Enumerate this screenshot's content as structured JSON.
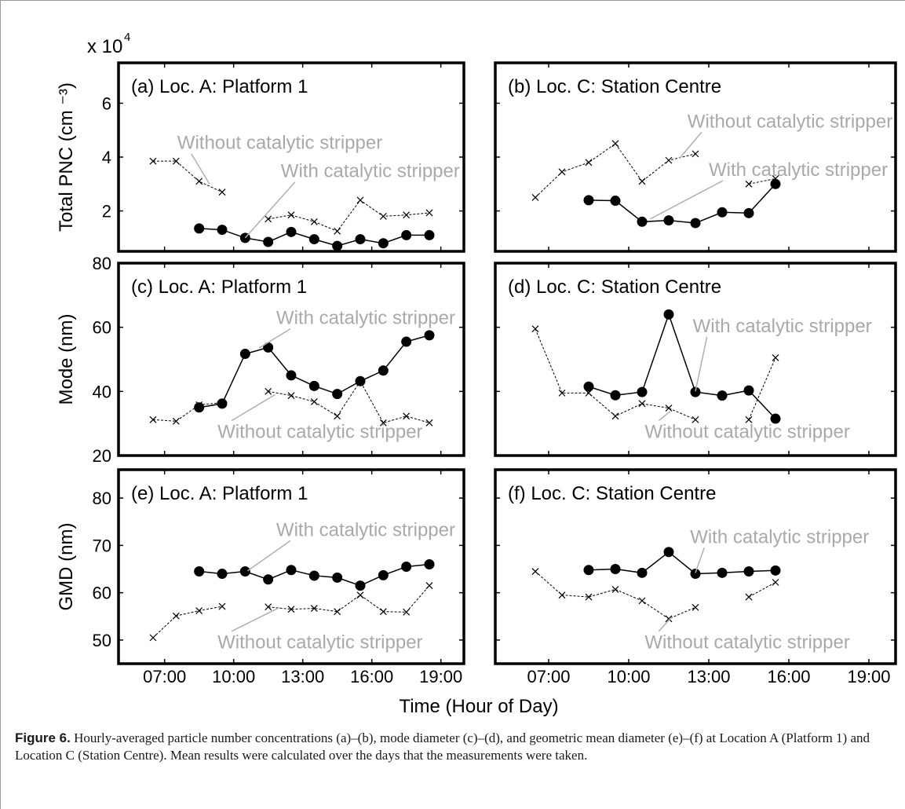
{
  "figure": {
    "exponent_base": "x 10",
    "exponent_power": "4",
    "xlabel": "Time (Hour of Day)",
    "caption_label": "Figure 6.",
    "caption_text": " Hourly-averaged particle number concentrations (a)–(b), mode diameter (c)–(d), and geometric mean diameter (e)–(f) at Location A (Platform 1) and Location C (Station Centre). Mean results were calculated over the days that the measurements were taken."
  },
  "chart_data": [
    {
      "id": "a",
      "type": "line",
      "row": 0,
      "col": 0,
      "title": "(a) Loc. A: Platform 1",
      "ylabel": "Total PNC (cm ⁻³)",
      "xlim": [
        5,
        20
      ],
      "ylim": [
        0.5,
        7.5
      ],
      "xticks": [
        "07:00",
        "10:00",
        "13:00",
        "16:00",
        "19:00"
      ],
      "yticks": [
        2,
        4,
        6
      ],
      "series": [
        {
          "name": "With catalytic stripper",
          "style": "solid-dot",
          "segments": [
            [
              [
                8.5,
                1.35
              ],
              [
                9.5,
                1.3
              ],
              [
                10.5,
                1.0
              ],
              [
                11.5,
                0.85
              ],
              [
                12.5,
                1.22
              ],
              [
                13.5,
                0.95
              ],
              [
                14.5,
                0.7
              ],
              [
                15.5,
                0.95
              ],
              [
                16.5,
                0.8
              ],
              [
                17.5,
                1.1
              ],
              [
                18.5,
                1.1
              ]
            ]
          ]
        },
        {
          "name": "Without catalytic stripper",
          "style": "dashed-x",
          "segments": [
            [
              [
                6.5,
                3.85
              ],
              [
                7.5,
                3.85
              ],
              [
                8.5,
                3.1
              ],
              [
                9.5,
                2.7
              ]
            ],
            [
              [
                11.5,
                1.7
              ],
              [
                12.5,
                1.85
              ],
              [
                13.5,
                1.6
              ],
              [
                14.5,
                1.25
              ],
              [
                15.5,
                2.4
              ],
              [
                16.5,
                1.8
              ],
              [
                17.5,
                1.85
              ],
              [
                18.5,
                1.93
              ]
            ]
          ]
        }
      ],
      "annotations": [
        {
          "text": "Without catalytic stripper",
          "label_at": [
            7.55,
            4.3
          ],
          "point": [
            8.95,
            3.0
          ]
        },
        {
          "text": "With catalytic stripper",
          "label_at": [
            12.05,
            3.25
          ],
          "point": [
            10.5,
            1.0
          ]
        }
      ]
    },
    {
      "id": "b",
      "type": "line",
      "row": 0,
      "col": 1,
      "title": "(b) Loc. C: Station Centre",
      "ylabel": "",
      "xlim": [
        5,
        20
      ],
      "ylim": [
        0.5,
        7.5
      ],
      "xticks": [
        "07:00",
        "10:00",
        "13:00",
        "16:00",
        "19:00"
      ],
      "yticks": [
        2,
        4,
        6
      ],
      "series": [
        {
          "name": "With catalytic stripper",
          "style": "solid-dot",
          "segments": [
            [
              [
                8.5,
                2.4
              ],
              [
                9.5,
                2.38
              ],
              [
                10.5,
                1.6
              ],
              [
                11.5,
                1.65
              ],
              [
                12.5,
                1.55
              ],
              [
                13.5,
                1.95
              ],
              [
                14.5,
                1.92
              ],
              [
                15.5,
                3.0
              ]
            ]
          ]
        },
        {
          "name": "Without catalytic stripper",
          "style": "dashed-x",
          "segments": [
            [
              [
                6.5,
                2.5
              ],
              [
                7.5,
                3.45
              ],
              [
                8.5,
                3.8
              ],
              [
                9.5,
                4.5
              ],
              [
                10.5,
                3.1
              ],
              [
                11.5,
                3.88
              ],
              [
                12.5,
                4.12
              ]
            ],
            [
              [
                14.5,
                3.0
              ],
              [
                15.5,
                3.2
              ]
            ]
          ]
        }
      ],
      "annotations": [
        {
          "text": "Without catalytic stripper",
          "label_at": [
            12.2,
            5.1
          ],
          "point": [
            11.9,
            3.95
          ]
        },
        {
          "text": "With catalytic stripper",
          "label_at": [
            13.0,
            3.3
          ],
          "point": [
            10.8,
            1.7
          ]
        }
      ]
    },
    {
      "id": "c",
      "type": "line",
      "row": 1,
      "col": 0,
      "title": "(c) Loc. A: Platform 1",
      "ylabel": "Mode (nm)",
      "xlim": [
        5,
        20
      ],
      "ylim": [
        20,
        80
      ],
      "xticks": [
        "07:00",
        "10:00",
        "13:00",
        "16:00",
        "19:00"
      ],
      "yticks": [
        20,
        40,
        60,
        80
      ],
      "series": [
        {
          "name": "With catalytic stripper",
          "style": "solid-dot",
          "segments": [
            [
              [
                8.5,
                35
              ],
              [
                9.5,
                36.2
              ],
              [
                10.5,
                51.7
              ],
              [
                11.5,
                53.7
              ],
              [
                12.5,
                45
              ],
              [
                13.5,
                41.7
              ],
              [
                14.5,
                39.2
              ],
              [
                15.5,
                43.2
              ],
              [
                16.5,
                46.5
              ],
              [
                17.5,
                55.5
              ],
              [
                18.5,
                57.5
              ]
            ]
          ]
        },
        {
          "name": "Without catalytic stripper",
          "style": "dashed-x",
          "segments": [
            [
              [
                6.5,
                31.2
              ],
              [
                7.5,
                30.7
              ],
              [
                8.5,
                35.8
              ],
              [
                9.5,
                36.5
              ]
            ],
            [
              [
                11.5,
                40
              ],
              [
                12.5,
                38.7
              ],
              [
                13.5,
                36.8
              ],
              [
                14.5,
                32.3
              ],
              [
                15.5,
                43.2
              ],
              [
                16.5,
                30.2
              ],
              [
                17.5,
                32.3
              ],
              [
                18.5,
                30.2
              ]
            ]
          ]
        }
      ],
      "annotations": [
        {
          "text": "With catalytic stripper",
          "label_at": [
            11.85,
            61
          ],
          "point": [
            11.1,
            53.5
          ]
        },
        {
          "text": "Without catalytic stripper",
          "label_at": [
            9.3,
            25.5
          ],
          "point": [
            11.8,
            39
          ]
        }
      ]
    },
    {
      "id": "d",
      "type": "line",
      "row": 1,
      "col": 1,
      "title": "(d) Loc. C: Station Centre",
      "ylabel": "",
      "xlim": [
        5,
        20
      ],
      "ylim": [
        20,
        80
      ],
      "xticks": [
        "07:00",
        "10:00",
        "13:00",
        "16:00",
        "19:00"
      ],
      "yticks": [
        20,
        40,
        60,
        80
      ],
      "series": [
        {
          "name": "With catalytic stripper",
          "style": "solid-dot",
          "segments": [
            [
              [
                8.5,
                41.5
              ],
              [
                9.5,
                38.8
              ],
              [
                10.5,
                39.8
              ],
              [
                11.5,
                64
              ],
              [
                12.5,
                39.8
              ],
              [
                13.5,
                38.7
              ],
              [
                14.5,
                40.3
              ],
              [
                15.5,
                31.5
              ]
            ]
          ]
        },
        {
          "name": "Without catalytic stripper",
          "style": "dashed-x",
          "segments": [
            [
              [
                6.5,
                59.5
              ],
              [
                7.5,
                39.5
              ],
              [
                8.5,
                39.5
              ],
              [
                9.5,
                32.3
              ],
              [
                10.5,
                36.2
              ],
              [
                11.5,
                34.8
              ],
              [
                12.5,
                31.2
              ]
            ],
            [
              [
                14.5,
                31.2
              ],
              [
                15.5,
                50.5
              ]
            ]
          ]
        }
      ],
      "annotations": [
        {
          "text": "With catalytic stripper",
          "label_at": [
            12.4,
            58.5
          ],
          "point": [
            12.5,
            40
          ]
        },
        {
          "text": "Without catalytic stripper",
          "label_at": [
            10.6,
            25.5
          ],
          "point": [
            11.55,
            33.8
          ]
        }
      ]
    },
    {
      "id": "e",
      "type": "line",
      "row": 2,
      "col": 0,
      "title": "(e) Loc. A: Platform 1",
      "ylabel": "GMD (nm)",
      "xlim": [
        5,
        20
      ],
      "ylim": [
        45,
        86
      ],
      "xticks": [
        "07:00",
        "10:00",
        "13:00",
        "16:00",
        "19:00"
      ],
      "yticks": [
        50,
        60,
        70,
        80
      ],
      "series": [
        {
          "name": "With catalytic stripper",
          "style": "solid-dot",
          "segments": [
            [
              [
                8.5,
                64.5
              ],
              [
                9.5,
                64
              ],
              [
                10.5,
                64.5
              ],
              [
                11.5,
                62.8
              ],
              [
                12.5,
                64.8
              ],
              [
                13.5,
                63.6
              ],
              [
                14.5,
                63.2
              ],
              [
                15.5,
                61.5
              ],
              [
                16.5,
                63.7
              ],
              [
                17.5,
                65.5
              ],
              [
                18.5,
                66
              ]
            ]
          ]
        },
        {
          "name": "Without catalytic stripper",
          "style": "dashed-x",
          "segments": [
            [
              [
                6.5,
                50.5
              ],
              [
                7.5,
                55.1
              ],
              [
                8.5,
                56.2
              ],
              [
                9.5,
                57.1
              ]
            ],
            [
              [
                11.5,
                57
              ],
              [
                12.5,
                56.5
              ],
              [
                13.5,
                56.7
              ],
              [
                14.5,
                56
              ],
              [
                15.5,
                59.5
              ],
              [
                16.5,
                56
              ],
              [
                17.5,
                55.9
              ],
              [
                18.5,
                61.5
              ]
            ]
          ]
        }
      ],
      "annotations": [
        {
          "text": "With catalytic stripper",
          "label_at": [
            11.85,
            72
          ],
          "point": [
            10.6,
            64.6
          ]
        },
        {
          "text": "Without catalytic stripper",
          "label_at": [
            9.3,
            48.2
          ],
          "point": [
            12.0,
            56.9
          ]
        }
      ]
    },
    {
      "id": "f",
      "type": "line",
      "row": 2,
      "col": 1,
      "title": "(f) Loc. C: Station Centre",
      "ylabel": "",
      "xlim": [
        5,
        20
      ],
      "ylim": [
        45,
        86
      ],
      "xticks": [
        "07:00",
        "10:00",
        "13:00",
        "16:00",
        "19:00"
      ],
      "yticks": [
        50,
        60,
        70,
        80
      ],
      "series": [
        {
          "name": "With catalytic stripper",
          "style": "solid-dot",
          "segments": [
            [
              [
                8.5,
                64.8
              ],
              [
                9.5,
                65
              ],
              [
                10.5,
                64.2
              ],
              [
                11.5,
                68.6
              ],
              [
                12.5,
                64
              ],
              [
                13.5,
                64.2
              ],
              [
                14.5,
                64.5
              ],
              [
                15.5,
                64.7
              ]
            ]
          ]
        },
        {
          "name": "Without catalytic stripper",
          "style": "dashed-x",
          "segments": [
            [
              [
                6.5,
                64.5
              ],
              [
                7.5,
                59.5
              ],
              [
                8.5,
                59.1
              ],
              [
                9.5,
                60.7
              ],
              [
                10.5,
                58.3
              ],
              [
                11.5,
                54.5
              ],
              [
                12.5,
                56.9
              ]
            ],
            [
              [
                14.5,
                59.1
              ],
              [
                15.5,
                62.2
              ]
            ]
          ]
        }
      ],
      "annotations": [
        {
          "text": "With catalytic stripper",
          "label_at": [
            12.3,
            70.5
          ],
          "point": [
            12.5,
            64.2
          ]
        },
        {
          "text": "Without catalytic stripper",
          "label_at": [
            10.6,
            48.2
          ],
          "point": [
            11.6,
            54.8
          ]
        }
      ]
    }
  ]
}
